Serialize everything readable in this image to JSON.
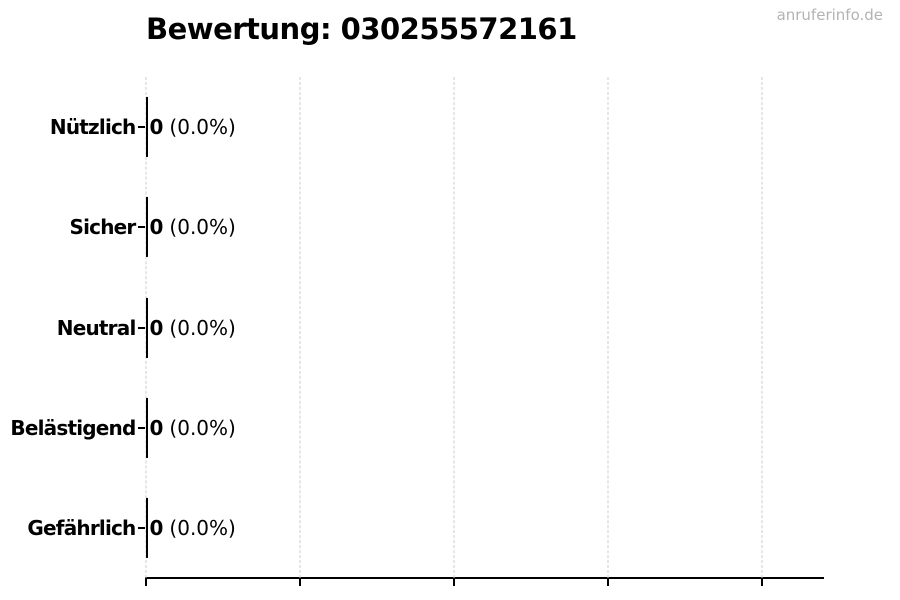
{
  "page": {
    "watermark": "anruferinfo.de",
    "background": "#ffffff"
  },
  "colors": {
    "title": "#000000",
    "category_label": "#000000",
    "value_label": "#000000",
    "bar_edge": "#000000",
    "axis": "#000000",
    "gridline": "#cccccc",
    "watermark": "#b3b3b3"
  },
  "chart_data": {
    "type": "bar",
    "orientation": "horizontal",
    "title": "Bewertung: 030255572161",
    "title_align": "left",
    "categories": [
      "Nützlich",
      "Sicher",
      "Neutral",
      "Belästigend",
      "Gefährlich"
    ],
    "values": [
      0,
      0,
      0,
      0,
      0
    ],
    "percents": [
      "0.0%",
      "0.0%",
      "0.0%",
      "0.0%",
      "0.0%"
    ],
    "value_label_format": "{count} ({percent})",
    "xlim": [
      0,
      1.1
    ],
    "xticks": [
      0,
      0.25,
      0.5,
      0.75,
      1.0
    ],
    "xtick_labels_visible": false,
    "grid": "vertical-dashed",
    "legend": "none"
  }
}
